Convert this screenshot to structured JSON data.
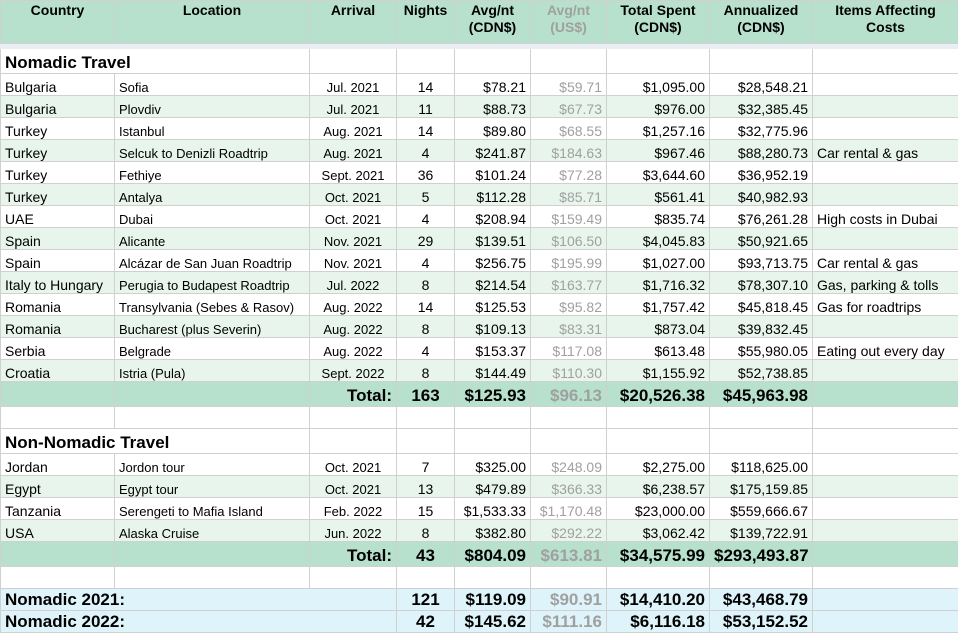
{
  "headers": {
    "country": "Country",
    "location": "Location",
    "arrival": "Arrival",
    "nights": "Nights",
    "avg_cdn_1": "Avg/nt",
    "avg_cdn_2": "(CDN$)",
    "avg_usd_1": "Avg/nt",
    "avg_usd_2": "(US$)",
    "total_1": "Total  Spent",
    "total_2": "(CDN$)",
    "annual_1": "Annualized",
    "annual_2": "(CDN$)",
    "items_1": "Items Affecting",
    "items_2": "Costs"
  },
  "nomadic": {
    "title": "Nomadic Travel",
    "rows": [
      {
        "country": "Bulgaria",
        "location": "Sofia",
        "arrival": "Jul. 2021",
        "nights": "14",
        "avg_cdn": "$78.21",
        "avg_usd": "$59.71",
        "total": "$1,095.00",
        "annual": "$28,548.21",
        "items": ""
      },
      {
        "country": "Bulgaria",
        "location": "Plovdiv",
        "arrival": "Jul. 2021",
        "nights": "11",
        "avg_cdn": "$88.73",
        "avg_usd": "$67.73",
        "total": "$976.00",
        "annual": "$32,385.45",
        "items": ""
      },
      {
        "country": "Turkey",
        "location": "Istanbul",
        "arrival": "Aug. 2021",
        "nights": "14",
        "avg_cdn": "$89.80",
        "avg_usd": "$68.55",
        "total": "$1,257.16",
        "annual": "$32,775.96",
        "items": ""
      },
      {
        "country": "Turkey",
        "location": "Selcuk to Denizli Roadtrip",
        "arrival": "Aug. 2021",
        "nights": "4",
        "avg_cdn": "$241.87",
        "avg_usd": "$184.63",
        "total": "$967.46",
        "annual": "$88,280.73",
        "items": "Car rental & gas"
      },
      {
        "country": "Turkey",
        "location": "Fethiye",
        "arrival": "Sept. 2021",
        "nights": "36",
        "avg_cdn": "$101.24",
        "avg_usd": "$77.28",
        "total": "$3,644.60",
        "annual": "$36,952.19",
        "items": ""
      },
      {
        "country": "Turkey",
        "location": "Antalya",
        "arrival": "Oct. 2021",
        "nights": "5",
        "avg_cdn": "$112.28",
        "avg_usd": "$85.71",
        "total": "$561.41",
        "annual": "$40,982.93",
        "items": ""
      },
      {
        "country": "UAE",
        "location": "Dubai",
        "arrival": "Oct. 2021",
        "nights": "4",
        "avg_cdn": "$208.94",
        "avg_usd": "$159.49",
        "total": "$835.74",
        "annual": "$76,261.28",
        "items": "High costs in Dubai"
      },
      {
        "country": "Spain",
        "location": "Alicante",
        "arrival": "Nov. 2021",
        "nights": "29",
        "avg_cdn": "$139.51",
        "avg_usd": "$106.50",
        "total": "$4,045.83",
        "annual": "$50,921.65",
        "items": ""
      },
      {
        "country": "Spain",
        "location": "Alcázar de San Juan Roadtrip",
        "arrival": "Nov. 2021",
        "nights": "4",
        "avg_cdn": "$256.75",
        "avg_usd": "$195.99",
        "total": "$1,027.00",
        "annual": "$93,713.75",
        "items": "Car rental & gas"
      },
      {
        "country": "Italy to Hungary",
        "location": "Perugia to Budapest Roadtrip",
        "arrival": "Jul. 2022",
        "nights": "8",
        "avg_cdn": "$214.54",
        "avg_usd": "$163.77",
        "total": "$1,716.32",
        "annual": "$78,307.10",
        "items": "Gas, parking & tolls"
      },
      {
        "country": "Romania",
        "location": "Transylvania (Sebes & Rasov)",
        "arrival": "Aug. 2022",
        "nights": "14",
        "avg_cdn": "$125.53",
        "avg_usd": "$95.82",
        "total": "$1,757.42",
        "annual": "$45,818.45",
        "items": "Gas for roadtrips"
      },
      {
        "country": "Romania",
        "location": "Bucharest (plus Severin)",
        "arrival": "Aug. 2022",
        "nights": "8",
        "avg_cdn": "$109.13",
        "avg_usd": "$83.31",
        "total": "$873.04",
        "annual": "$39,832.45",
        "items": ""
      },
      {
        "country": "Serbia",
        "location": "Belgrade",
        "arrival": "Aug. 2022",
        "nights": "4",
        "avg_cdn": "$153.37",
        "avg_usd": "$117.08",
        "total": "$613.48",
        "annual": "$55,980.05",
        "items": "Eating out every day"
      },
      {
        "country": "Croatia",
        "location": "Istria (Pula)",
        "arrival": "Sept. 2022",
        "nights": "8",
        "avg_cdn": "$144.49",
        "avg_usd": "$110.30",
        "total": "$1,155.92",
        "annual": "$52,738.85",
        "items": ""
      }
    ],
    "total": {
      "label": "Total:",
      "nights": "163",
      "avg_cdn": "$125.93",
      "avg_usd": "$96.13",
      "total": "$20,526.38",
      "annual": "$45,963.98"
    }
  },
  "non_nomadic": {
    "title": "Non-Nomadic Travel",
    "rows": [
      {
        "country": "Jordan",
        "location": "Jordon tour",
        "arrival": "Oct. 2021",
        "nights": "7",
        "avg_cdn": "$325.00",
        "avg_usd": "$248.09",
        "total": "$2,275.00",
        "annual": "$118,625.00",
        "items": ""
      },
      {
        "country": "Egypt",
        "location": "Egypt tour",
        "arrival": "Oct. 2021",
        "nights": "13",
        "avg_cdn": "$479.89",
        "avg_usd": "$366.33",
        "total": "$6,238.57",
        "annual": "$175,159.85",
        "items": ""
      },
      {
        "country": "Tanzania",
        "location": "Serengeti to Mafia Island",
        "arrival": "Feb. 2022",
        "nights": "15",
        "avg_cdn": "$1,533.33",
        "avg_usd": "$1,170.48",
        "total": "$23,000.00",
        "annual": "$559,666.67",
        "items": ""
      },
      {
        "country": "USA",
        "location": "Alaska Cruise",
        "arrival": "Jun. 2022",
        "nights": "8",
        "avg_cdn": "$382.80",
        "avg_usd": "$292.22",
        "total": "$3,062.42",
        "annual": "$139,722.91",
        "items": ""
      }
    ],
    "total": {
      "label": "Total:",
      "nights": "43",
      "avg_cdn": "$804.09",
      "avg_usd": "$613.81",
      "total": "$34,575.99",
      "annual": "$293,493.87"
    }
  },
  "summary": [
    {
      "label": "Nomadic 2021:",
      "nights": "121",
      "avg_cdn": "$119.09",
      "avg_usd": "$90.91",
      "total": "$14,410.20",
      "annual": "$43,468.79"
    },
    {
      "label": "Nomadic 2022:",
      "nights": "42",
      "avg_cdn": "$145.62",
      "avg_usd": "$111.16",
      "total": "$6,116.18",
      "annual": "$53,152.52"
    }
  ]
}
